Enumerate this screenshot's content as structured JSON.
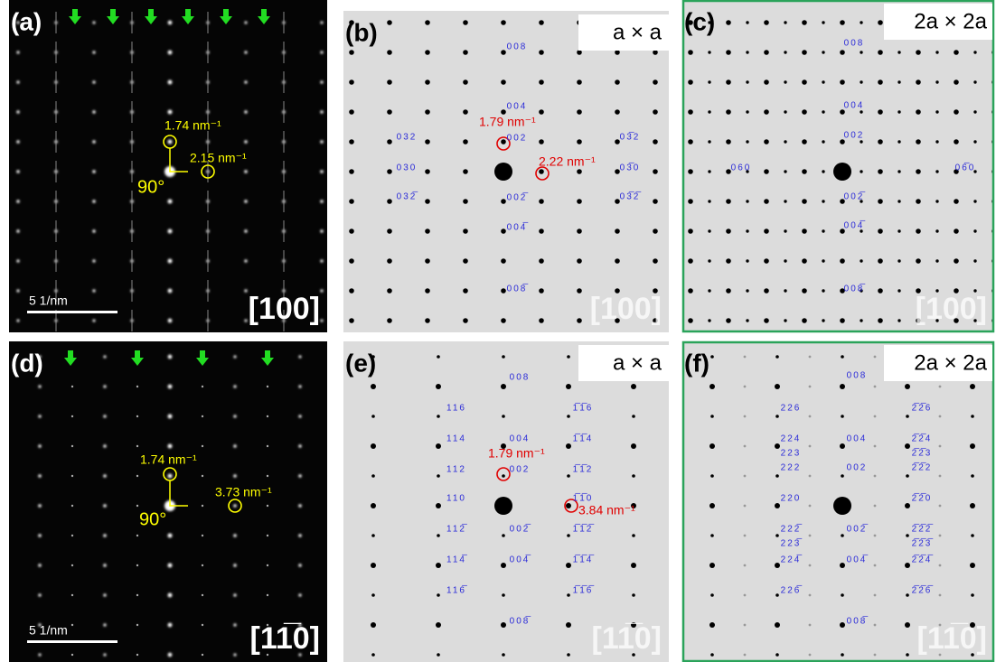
{
  "panels": [
    {
      "label": "(a)",
      "zone": "[100]",
      "scale_bar": "5 1/nm",
      "annotations": [
        "1.74 nm⁻¹",
        "2.15 nm⁻¹",
        "90°"
      ],
      "indices": []
    },
    {
      "label": "(b)",
      "zone": "[100]",
      "cell": "a × a",
      "annotations": [
        "1.79 nm⁻¹",
        "2.22 nm⁻¹"
      ],
      "indices": [
        "008",
        "004",
        "002",
        "002̅",
        "004̅",
        "008̅",
        "032",
        "030",
        "032̅",
        "03̅2",
        "03̅0",
        "03̅2̅"
      ]
    },
    {
      "label": "(c)",
      "zone": "[100]",
      "cell": "2a × 2a",
      "annotations": [],
      "indices": [
        "008",
        "004",
        "002",
        "002̅",
        "004̅",
        "008̅",
        "060",
        "06̅0"
      ]
    },
    {
      "label": "(d)",
      "zone": "[11̅0]",
      "scale_bar": "5 1/nm",
      "annotations": [
        "1.74 nm⁻¹",
        "3.73 nm⁻¹",
        "90°"
      ],
      "indices": []
    },
    {
      "label": "(e)",
      "zone": "[11̅0]",
      "cell": "a × a",
      "annotations": [
        "1.79 nm⁻¹",
        "3.84 nm⁻¹"
      ],
      "indices": [
        "008",
        "116",
        "1̅1̅6",
        "114",
        "004",
        "1̅1̅4",
        "112",
        "002",
        "1̅1̅2",
        "110",
        "1̅1̅0",
        "112̅",
        "002̅",
        "1̅1̅2̅",
        "114̅",
        "004̅",
        "1̅1̅4̅",
        "116̅",
        "1̅1̅6̅",
        "008̅"
      ]
    },
    {
      "label": "(f)",
      "zone": "[11̅0]",
      "cell": "2a × 2a",
      "annotations": [],
      "indices": [
        "008",
        "226",
        "2̅2̅6",
        "224",
        "004",
        "2̅2̅4",
        "223",
        "2̅2̅3",
        "222",
        "002",
        "2̅2̅2",
        "220",
        "2̅2̅0",
        "222̅",
        "002̅",
        "2̅2̅2̅",
        "223̅",
        "2̅2̅3̅",
        "224̅",
        "004̅",
        "2̅2̅4̅",
        "226̅",
        "2̅2̅6̅",
        "008̅"
      ]
    }
  ]
}
